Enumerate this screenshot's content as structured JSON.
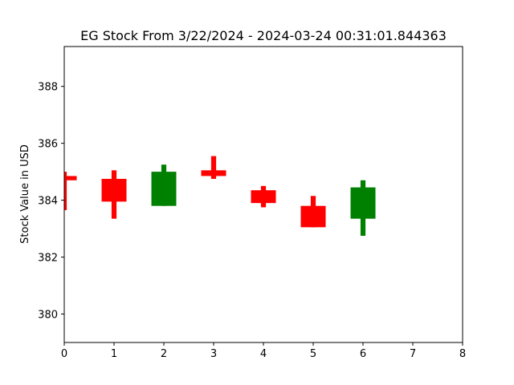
{
  "chart_data": {
    "type": "candlestick",
    "title": "EG Stock From 3/22/2024 - 2024-03-24 00:31:01.844363",
    "xlabel": "",
    "ylabel": "Stock Value in USD",
    "xlim": [
      0,
      8
    ],
    "ylim": [
      379,
      389.4
    ],
    "x_ticks": [
      "0",
      "1",
      "2",
      "3",
      "4",
      "5",
      "6",
      "7",
      "8"
    ],
    "y_ticks": [
      "380",
      "382",
      "384",
      "386",
      "388"
    ],
    "grid": false,
    "colors": {
      "up": "#008000",
      "down": "#ff0000"
    },
    "candles": [
      {
        "x": 0,
        "open": 384.85,
        "close": 384.7,
        "high": 385.0,
        "low": 383.65,
        "direction": "down"
      },
      {
        "x": 1,
        "open": 384.75,
        "close": 383.95,
        "high": 385.05,
        "low": 383.35,
        "direction": "down"
      },
      {
        "x": 2,
        "open": 383.8,
        "close": 385.0,
        "high": 385.25,
        "low": 383.8,
        "direction": "up"
      },
      {
        "x": 3,
        "open": 385.05,
        "close": 384.85,
        "high": 385.55,
        "low": 384.75,
        "direction": "down"
      },
      {
        "x": 4,
        "open": 384.35,
        "close": 383.9,
        "high": 384.5,
        "low": 383.75,
        "direction": "down"
      },
      {
        "x": 5,
        "open": 383.8,
        "close": 383.05,
        "high": 384.15,
        "low": 383.05,
        "direction": "down"
      },
      {
        "x": 6,
        "open": 383.35,
        "close": 384.45,
        "high": 384.7,
        "low": 382.75,
        "direction": "up"
      }
    ]
  }
}
